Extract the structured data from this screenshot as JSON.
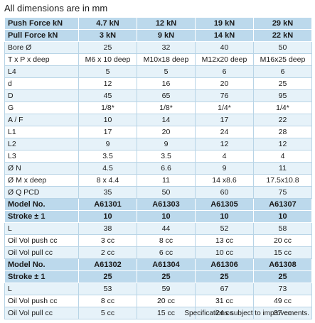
{
  "caption": "All dimensions are in mm",
  "footnote": "Specifications subject to improvements.",
  "rows": [
    {
      "style": "hdr",
      "cells": [
        "Push Force kN",
        "4.7 kN",
        "12 kN",
        "19 kN",
        "29 kN"
      ]
    },
    {
      "style": "hdr",
      "cells": [
        "Pull Force kN",
        "3 kN",
        "9 kN",
        "14 kN",
        "22 kN"
      ]
    },
    {
      "style": "odd",
      "cells": [
        "Bore Ø",
        "25",
        "32",
        "40",
        "50"
      ]
    },
    {
      "style": "even",
      "cells": [
        "T x P x deep",
        "M6 x 10 deep",
        "M10x18 deep",
        "M12x20 deep",
        "M16x25 deep"
      ]
    },
    {
      "style": "odd",
      "cells": [
        "L4",
        "5",
        "5",
        "6",
        "6"
      ]
    },
    {
      "style": "even",
      "cells": [
        "d",
        "12",
        "16",
        "20",
        "25"
      ]
    },
    {
      "style": "odd",
      "cells": [
        "D",
        "45",
        "65",
        "76",
        "95"
      ]
    },
    {
      "style": "even",
      "cells": [
        "G",
        "1/8*",
        "1/8*",
        "1/4*",
        "1/4*"
      ]
    },
    {
      "style": "odd",
      "cells": [
        "A / F",
        "10",
        "14",
        "17",
        "22"
      ]
    },
    {
      "style": "even",
      "cells": [
        "L1",
        "17",
        "20",
        "24",
        "28"
      ]
    },
    {
      "style": "odd",
      "cells": [
        "L2",
        "9",
        "9",
        "12",
        "12"
      ]
    },
    {
      "style": "even",
      "cells": [
        "L3",
        "3.5",
        "3.5",
        "4",
        "4"
      ]
    },
    {
      "style": "odd",
      "cells": [
        "Ø N",
        "4.5",
        "6.6",
        "9",
        "11"
      ]
    },
    {
      "style": "even",
      "cells": [
        "Ø M x deep",
        "8 x 4.4",
        "11",
        "14 x8.6",
        "17.5x10.8"
      ]
    },
    {
      "style": "odd",
      "cells": [
        "Ø Q PCD",
        "35",
        "50",
        "60",
        "75"
      ]
    },
    {
      "style": "hdr",
      "cells": [
        "Model No.",
        "A61301",
        "A61303",
        "A61305",
        "A61307"
      ]
    },
    {
      "style": "hdr",
      "cells": [
        "Stroke ± 1",
        "10",
        "10",
        "10",
        "10"
      ]
    },
    {
      "style": "odd",
      "cells": [
        "L",
        "38",
        "44",
        "52",
        "58"
      ]
    },
    {
      "style": "even",
      "cells": [
        "Oil Vol push cc",
        "3 cc",
        "8 cc",
        "13 cc",
        "20 cc"
      ]
    },
    {
      "style": "odd",
      "cells": [
        "Oil Vol pull cc",
        "2 cc",
        "6 cc",
        "10 cc",
        "15 cc"
      ]
    },
    {
      "style": "hdr",
      "cells": [
        "Model No.",
        "A61302",
        "A61304",
        "A61306",
        "A61308"
      ]
    },
    {
      "style": "hdr",
      "cells": [
        "Stroke ± 1",
        "25",
        "25",
        "25",
        "25"
      ]
    },
    {
      "style": "odd",
      "cells": [
        "L",
        "53",
        "59",
        "67",
        "73"
      ]
    },
    {
      "style": "even",
      "cells": [
        "Oil Vol push cc",
        "8 cc",
        "20 cc",
        "31 cc",
        "49 cc"
      ]
    },
    {
      "style": "odd",
      "cells": [
        "Oil Vol pull cc",
        "5 cc",
        "15 cc",
        "24 cc",
        "37 cc"
      ]
    }
  ]
}
